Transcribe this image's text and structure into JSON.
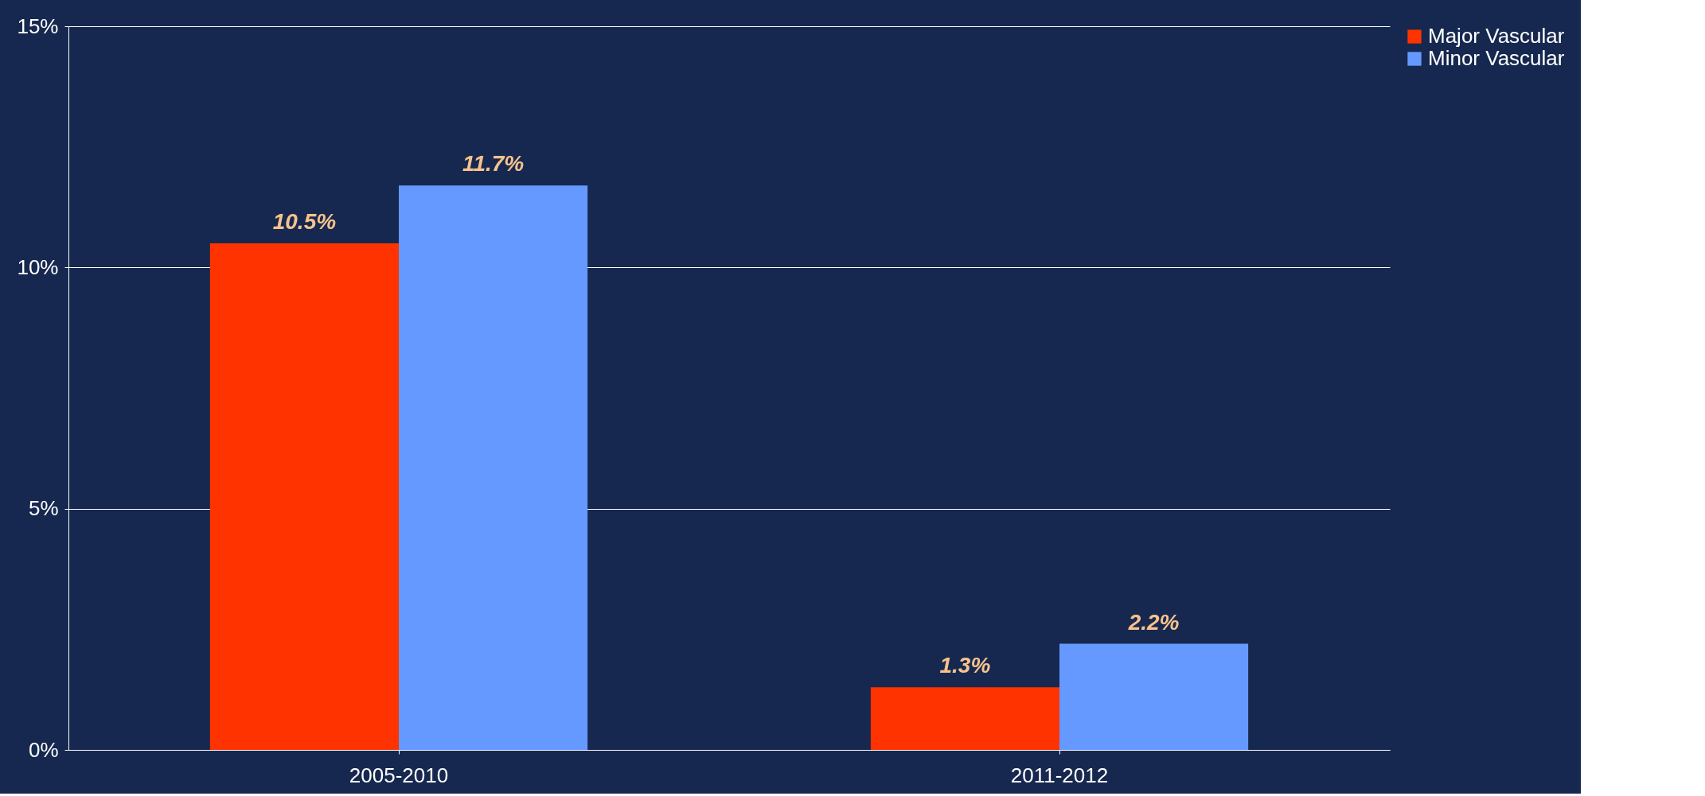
{
  "chart_data": {
    "type": "bar",
    "categories": [
      "2005-2010",
      "2011-2012"
    ],
    "series": [
      {
        "name": "Major Vascular",
        "color": "#ff3300",
        "values": [
          10.5,
          1.3
        ],
        "value_labels": [
          "10.5%",
          "1.3%"
        ]
      },
      {
        "name": "Minor Vascular",
        "color": "#6699ff",
        "values": [
          11.7,
          2.2
        ],
        "value_labels": [
          "11.7%",
          "2.2%"
        ]
      }
    ],
    "ylim": [
      0,
      15
    ],
    "yticks": [
      {
        "value": 0,
        "label": "0%"
      },
      {
        "value": 5,
        "label": "5%"
      },
      {
        "value": 10,
        "label": "10%"
      },
      {
        "value": 15,
        "label": "15%"
      }
    ],
    "grid": "y",
    "legend": "right"
  }
}
